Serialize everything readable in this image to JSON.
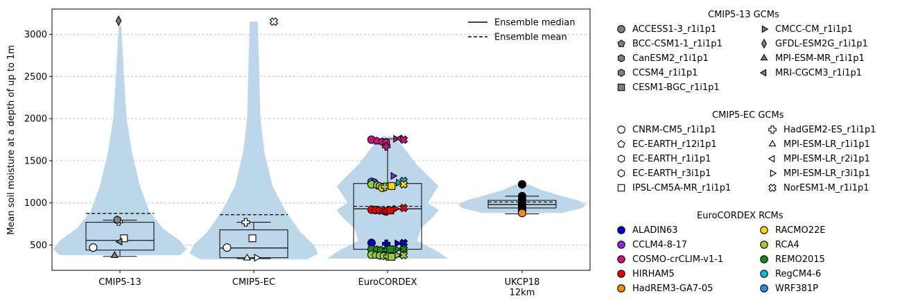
{
  "chart_data": {
    "type": "violin",
    "ylabel": "Mean soil moisture at a depth of up to 1m",
    "ylim": [
      200,
      3300
    ],
    "yticks": [
      500,
      1000,
      1500,
      2000,
      2500,
      3000
    ],
    "grid": "y-dashed",
    "categories": [
      "CMIP5-13",
      "CMIP5-EC",
      "EuroCORDEX",
      "UKCP18\n12km"
    ],
    "category_labels": [
      "CMIP5-13",
      "CMIP5-EC",
      "EuroCORDEX",
      "UKCP18",
      "12km"
    ],
    "violin_color": "#bcd6ea",
    "box_stats": [
      {
        "q1": 440,
        "median": 555,
        "q3": 770,
        "whisker_low": 365,
        "whisker_high": 795,
        "mean": 875
      },
      {
        "q1": 350,
        "median": 465,
        "q3": 680,
        "whisker_low": 340,
        "whisker_high": 770,
        "mean": 860
      },
      {
        "q1": 450,
        "median": 930,
        "q3": 1230,
        "whisker_low": 360,
        "whisker_high": 1760,
        "mean": 960
      },
      {
        "q1": 940,
        "median": 980,
        "q3": 1030,
        "whisker_low": 870,
        "whisker_high": 1080,
        "mean": 1010
      }
    ],
    "violins": [
      {
        "y": [
          380,
          450,
          550,
          700,
          900,
          1200,
          1600,
          2000,
          2500,
          3100
        ],
        "width": [
          0.45,
          0.5,
          0.45,
          0.32,
          0.22,
          0.15,
          0.09,
          0.05,
          0.03,
          0.01
        ]
      },
      {
        "y": [
          330,
          400,
          500,
          650,
          900,
          1200,
          1600,
          2000,
          2600,
          3150
        ],
        "width": [
          0.4,
          0.48,
          0.45,
          0.35,
          0.24,
          0.14,
          0.08,
          0.05,
          0.04,
          0.03
        ]
      },
      {
        "y": [
          340,
          420,
          550,
          700,
          850,
          920,
          1000,
          1200,
          1450,
          1700,
          1790
        ],
        "width": [
          0.45,
          0.38,
          0.22,
          0.25,
          0.35,
          0.38,
          0.3,
          0.38,
          0.22,
          0.1,
          0.03
        ]
      },
      {
        "y": [
          880,
          940,
          980,
          1030,
          1080,
          1150,
          1220
        ],
        "width": [
          0.3,
          0.45,
          0.48,
          0.42,
          0.3,
          0.15,
          0.05
        ]
      }
    ],
    "points": [
      {
        "group": 0,
        "y": 470,
        "marker": "circle",
        "fill": "#ffffff",
        "model": "CNRM-CM5_r1i1p1",
        "dx": -0.2
      },
      {
        "group": 0,
        "y": 580,
        "marker": "square",
        "fill": "#ffffff",
        "model": "IPSL-CM5A-MR_r1i1p1",
        "dx": 0.03
      },
      {
        "group": 0,
        "y": 780,
        "marker": "plus",
        "fill": "#ffffff",
        "model": "HadGEM2-ES_r1i1p1",
        "dx": -0.01
      },
      {
        "group": 0,
        "y": 800,
        "marker": "hexagon",
        "fill": "#808080",
        "model": "CanESM2_r1i1p1",
        "dx": -0.02
      },
      {
        "group": 0,
        "y": 540,
        "marker": "tri-left",
        "fill": "#808080",
        "model": "MRI-CGCM3_r1i1p1",
        "dx": 0.0
      },
      {
        "group": 0,
        "y": 375,
        "marker": "tri-up",
        "fill": "#808080",
        "model": "MPI-ESM-MR_r1i1p1",
        "dx": -0.04
      },
      {
        "group": 0,
        "y": 3160,
        "marker": "diamond",
        "fill": "#808080",
        "model": "GFDL-ESM2G_r1i1p1",
        "dx": -0.01
      },
      {
        "group": 1,
        "y": 470,
        "marker": "circle",
        "fill": "#ffffff",
        "model": "CNRM-CM5_r1i1p1",
        "dx": -0.2
      },
      {
        "group": 1,
        "y": 580,
        "marker": "square",
        "fill": "#ffffff",
        "model": "IPSL-CM5A-MR_r1i1p1",
        "dx": -0.01
      },
      {
        "group": 1,
        "y": 770,
        "marker": "plus",
        "fill": "#ffffff",
        "model": "HadGEM2-ES_r1i1p1",
        "dx": -0.06
      },
      {
        "group": 1,
        "y": 345,
        "marker": "tri-up",
        "fill": "#ffffff",
        "model": "MPI-ESM-LR_r1i1p1",
        "dx": -0.05
      },
      {
        "group": 1,
        "y": 350,
        "marker": "tri-right",
        "fill": "#ffffff",
        "model": "MPI-ESM-LR_r3i1p1",
        "dx": 0.02
      },
      {
        "group": 1,
        "y": 3150,
        "marker": "cross",
        "fill": "#ffffff",
        "model": "NorESM1-M_r1i1p1",
        "dx": 0.15
      },
      {
        "group": 2,
        "y": 1750,
        "marker": "circle",
        "fill": "#c71585",
        "dx": -0.12
      },
      {
        "group": 2,
        "y": 1735,
        "marker": "pentagon",
        "fill": "#c71585",
        "dx": -0.08
      },
      {
        "group": 2,
        "y": 1725,
        "marker": "hexagon",
        "fill": "#c71585",
        "dx": -0.04
      },
      {
        "group": 2,
        "y": 1720,
        "marker": "hexagon",
        "fill": "#c71585",
        "dx": -0.01
      },
      {
        "group": 2,
        "y": 1670,
        "marker": "plus",
        "fill": "#c71585",
        "dx": -0.01
      },
      {
        "group": 2,
        "y": 1760,
        "marker": "tri-right",
        "fill": "#c71585",
        "dx": 0.06
      },
      {
        "group": 2,
        "y": 1765,
        "marker": "tri-left",
        "fill": "#c71585",
        "dx": 0.09
      },
      {
        "group": 2,
        "y": 1750,
        "marker": "cross",
        "fill": "#c71585",
        "dx": 0.12
      },
      {
        "group": 2,
        "y": 1320,
        "marker": "tri-right",
        "fill": "#8a2be2",
        "dx": 0.04
      },
      {
        "group": 2,
        "y": 1250,
        "marker": "circle",
        "fill": "#1e90ff",
        "dx": -0.12
      },
      {
        "group": 2,
        "y": 1240,
        "marker": "circle",
        "fill": "#8a2be2",
        "dx": -0.1
      },
      {
        "group": 2,
        "y": 1220,
        "marker": "circle",
        "fill": "#9acd32",
        "dx": -0.12
      },
      {
        "group": 2,
        "y": 1210,
        "marker": "hexagon",
        "fill": "#9acd32",
        "dx": -0.08
      },
      {
        "group": 2,
        "y": 1200,
        "marker": "hexagon",
        "fill": "#9acd32",
        "dx": -0.06
      },
      {
        "group": 2,
        "y": 1180,
        "marker": "circle",
        "fill": "#ffd700",
        "dx": -0.04
      },
      {
        "group": 2,
        "y": 1190,
        "marker": "plus",
        "fill": "#9acd32",
        "dx": -0.02
      },
      {
        "group": 2,
        "y": 1200,
        "marker": "square",
        "fill": "#ffd700",
        "dx": 0.03
      },
      {
        "group": 2,
        "y": 1240,
        "marker": "tri-right",
        "fill": "#00bcd4",
        "dx": 0.08
      },
      {
        "group": 2,
        "y": 1260,
        "marker": "cross",
        "fill": "#00bcd4",
        "dx": 0.12
      },
      {
        "group": 2,
        "y": 1220,
        "marker": "cross",
        "fill": "#ffd700",
        "dx": 0.12
      },
      {
        "group": 2,
        "y": 920,
        "marker": "circle",
        "fill": "#e60000",
        "dx": -0.12
      },
      {
        "group": 2,
        "y": 915,
        "marker": "circle",
        "fill": "#e60000",
        "dx": -0.09
      },
      {
        "group": 2,
        "y": 910,
        "marker": "hexagon",
        "fill": "#e60000",
        "dx": -0.06
      },
      {
        "group": 2,
        "y": 905,
        "marker": "hexagon",
        "fill": "#e60000",
        "dx": -0.03
      },
      {
        "group": 2,
        "y": 900,
        "marker": "plus",
        "fill": "#e60000",
        "dx": -0.01
      },
      {
        "group": 2,
        "y": 910,
        "marker": "square",
        "fill": "#e60000",
        "dx": 0.02
      },
      {
        "group": 2,
        "y": 930,
        "marker": "tri-right",
        "fill": "#e60000",
        "dx": 0.06
      },
      {
        "group": 2,
        "y": 940,
        "marker": "cross",
        "fill": "#e60000",
        "dx": 0.12
      },
      {
        "group": 2,
        "y": 525,
        "marker": "circle",
        "fill": "#0000cd",
        "dx": -0.12
      },
      {
        "group": 2,
        "y": 515,
        "marker": "plus",
        "fill": "#0000cd",
        "dx": -0.01
      },
      {
        "group": 2,
        "y": 520,
        "marker": "tri-right",
        "fill": "#0000cd",
        "dx": 0.07
      },
      {
        "group": 2,
        "y": 525,
        "marker": "cross",
        "fill": "#0000cd",
        "dx": 0.12
      },
      {
        "group": 2,
        "y": 450,
        "marker": "circle",
        "fill": "#1a8a1a",
        "dx": -0.12
      },
      {
        "group": 2,
        "y": 445,
        "marker": "hexagon",
        "fill": "#1a8a1a",
        "dx": -0.08
      },
      {
        "group": 2,
        "y": 440,
        "marker": "hexagon",
        "fill": "#1a8a1a",
        "dx": -0.05
      },
      {
        "group": 2,
        "y": 440,
        "marker": "plus",
        "fill": "#1a8a1a",
        "dx": -0.01
      },
      {
        "group": 2,
        "y": 450,
        "marker": "square",
        "fill": "#1a8a1a",
        "dx": 0.02
      },
      {
        "group": 2,
        "y": 450,
        "marker": "tri-right",
        "fill": "#1a8a1a",
        "dx": 0.07
      },
      {
        "group": 2,
        "y": 450,
        "marker": "cross",
        "fill": "#1a8a1a",
        "dx": 0.12
      },
      {
        "group": 2,
        "y": 385,
        "marker": "circle",
        "fill": "#9acd32",
        "dx": -0.12
      },
      {
        "group": 2,
        "y": 380,
        "marker": "pentagon",
        "fill": "#9acd32",
        "dx": -0.09
      },
      {
        "group": 2,
        "y": 375,
        "marker": "hexagon",
        "fill": "#9acd32",
        "dx": -0.06
      },
      {
        "group": 2,
        "y": 370,
        "marker": "hexagon",
        "fill": "#9acd32",
        "dx": -0.03
      },
      {
        "group": 2,
        "y": 365,
        "marker": "plus",
        "fill": "#9acd32",
        "dx": 0.0
      },
      {
        "group": 2,
        "y": 360,
        "marker": "square",
        "fill": "#9acd32",
        "dx": 0.03
      },
      {
        "group": 2,
        "y": 380,
        "marker": "tri-right",
        "fill": "#9acd32",
        "dx": 0.07
      },
      {
        "group": 2,
        "y": 380,
        "marker": "cross",
        "fill": "#9acd32",
        "dx": 0.12
      },
      {
        "group": 3,
        "y": 1220,
        "marker": "circle",
        "fill": "#000000",
        "dx": 0.0
      },
      {
        "group": 3,
        "y": 1080,
        "marker": "circle",
        "fill": "#000000",
        "dx": 0.0
      },
      {
        "group": 3,
        "y": 1040,
        "marker": "circle",
        "fill": "#000000",
        "dx": 0.0
      },
      {
        "group": 3,
        "y": 1000,
        "marker": "circle",
        "fill": "#000000",
        "dx": 0.0
      },
      {
        "group": 3,
        "y": 970,
        "marker": "circle",
        "fill": "#000000",
        "dx": 0.0
      },
      {
        "group": 3,
        "y": 940,
        "marker": "circle",
        "fill": "#000000",
        "dx": 0.0
      },
      {
        "group": 3,
        "y": 910,
        "marker": "circle",
        "fill": "#000000",
        "dx": 0.0
      },
      {
        "group": 3,
        "y": 880,
        "marker": "circle",
        "fill": "#ff8c00",
        "dx": 0.0
      }
    ],
    "line_legend": [
      {
        "label": "Ensemble median",
        "style": "solid"
      },
      {
        "label": "Ensemble mean",
        "style": "dashed"
      }
    ]
  },
  "legend": {
    "cmip513": {
      "title": "CMIP5-13 GCMs",
      "items": [
        {
          "label": "ACCESS1-3_r1i1p1",
          "marker": "circle",
          "fill": "#808080"
        },
        {
          "label": "BCC-CSM1-1_r1i1p1",
          "marker": "pentagon",
          "fill": "#808080"
        },
        {
          "label": "CanESM2_r1i1p1",
          "marker": "hexagon",
          "fill": "#808080"
        },
        {
          "label": "CCSM4_r1i1p1",
          "marker": "hexagon",
          "fill": "#808080"
        },
        {
          "label": "CESM1-BGC_r1i1p1",
          "marker": "square",
          "fill": "#808080"
        },
        {
          "label": "CMCC-CM_r1i1p1",
          "marker": "tri-right",
          "fill": "#808080"
        },
        {
          "label": "GFDL-ESM2G_r1i1p1",
          "marker": "diamond",
          "fill": "#808080"
        },
        {
          "label": "MPI-ESM-MR_r1i1p1",
          "marker": "tri-up",
          "fill": "#808080"
        },
        {
          "label": "MRI-CGCM3_r1i1p1",
          "marker": "tri-left",
          "fill": "#808080"
        }
      ]
    },
    "cmip5ec": {
      "title": "CMIP5-EC GCMs",
      "items": [
        {
          "label": "CNRM-CM5_r1i1p1",
          "marker": "circle",
          "fill": "#ffffff"
        },
        {
          "label": "EC-EARTH_r12i1p1",
          "marker": "pentagon",
          "fill": "#ffffff"
        },
        {
          "label": "EC-EARTH_r1i1p1",
          "marker": "hexagon",
          "fill": "#ffffff"
        },
        {
          "label": "EC-EARTH_r3i1p1",
          "marker": "hexagon",
          "fill": "#ffffff"
        },
        {
          "label": "IPSL-CM5A-MR_r1i1p1",
          "marker": "square",
          "fill": "#ffffff"
        },
        {
          "label": "HadGEM2-ES_r1i1p1",
          "marker": "plus",
          "fill": "#ffffff"
        },
        {
          "label": "MPI-ESM-LR_r1i1p1",
          "marker": "tri-up",
          "fill": "#ffffff"
        },
        {
          "label": "MPI-ESM-LR_r2i1p1",
          "marker": "tri-left",
          "fill": "#ffffff"
        },
        {
          "label": "MPI-ESM-LR_r3i1p1",
          "marker": "tri-right",
          "fill": "#ffffff"
        },
        {
          "label": "NorESM1-M_r1i1p1",
          "marker": "cross",
          "fill": "#ffffff"
        }
      ]
    },
    "eurocordex": {
      "title": "EuroCORDEX RCMs",
      "items": [
        {
          "label": "ALADIN63",
          "marker": "circle",
          "fill": "#0000cd"
        },
        {
          "label": "CCLM4-8-17",
          "marker": "circle",
          "fill": "#8a2be2"
        },
        {
          "label": "COSMO-crCLIM-v1-1",
          "marker": "circle",
          "fill": "#c71585"
        },
        {
          "label": "HIRHAM5",
          "marker": "circle",
          "fill": "#e60000"
        },
        {
          "label": "HadREM3-GA7-05",
          "marker": "circle",
          "fill": "#ff8c00"
        },
        {
          "label": "RACMO22E",
          "marker": "circle",
          "fill": "#ffd700"
        },
        {
          "label": "RCA4",
          "marker": "circle",
          "fill": "#9acd32"
        },
        {
          "label": "REMO2015",
          "marker": "circle",
          "fill": "#1a8a1a"
        },
        {
          "label": "RegCM4-6",
          "marker": "circle",
          "fill": "#00bcd4"
        },
        {
          "label": "WRF381P",
          "marker": "circle",
          "fill": "#1e90ff"
        }
      ]
    }
  }
}
